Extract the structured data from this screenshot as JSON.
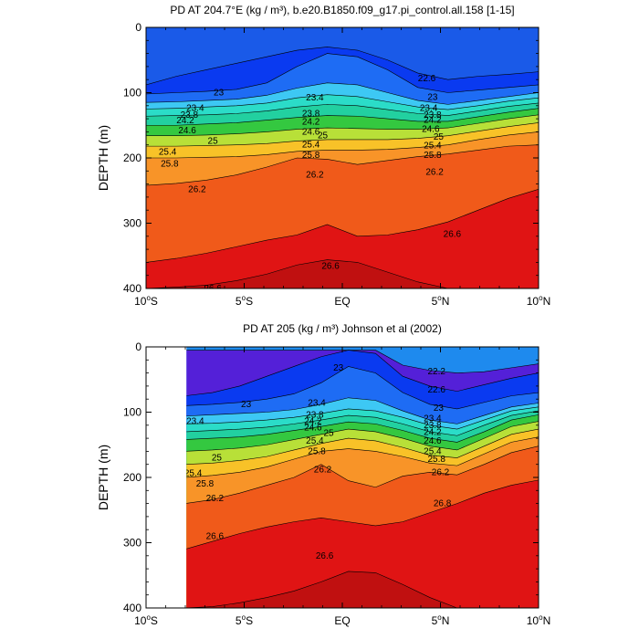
{
  "chart_data": [
    {
      "type": "contour",
      "title": "PD AT 204.7°E (kg / m³), b.e20.B1850.f09_g17.pi_control.all.158 [1-15]",
      "ylabel": "DEPTH (m)",
      "xlim": [
        -10,
        10
      ],
      "ylim": [
        0,
        400
      ],
      "y_inverted": true,
      "xticks": [
        {
          "value": -10,
          "label": "10°S"
        },
        {
          "value": -5,
          "label": "5°S"
        },
        {
          "value": 0,
          "label": "EQ"
        },
        {
          "value": 5,
          "label": "5°N"
        },
        {
          "value": 10,
          "label": "10°N"
        }
      ],
      "yticks": [
        0,
        100,
        200,
        300,
        400
      ],
      "contour_lines": [
        {
          "level": "22.6",
          "depth": [
            88,
            75,
            65,
            55,
            45,
            35,
            30,
            35,
            50,
            70,
            80,
            75,
            72,
            68
          ]
        },
        {
          "level": "23",
          "depth": [
            102,
            100,
            98,
            95,
            85,
            60,
            40,
            45,
            65,
            92,
            100,
            96,
            92,
            88
          ]
        },
        {
          "level": "23.4",
          "depth": [
            115,
            114,
            112,
            110,
            104,
            93,
            85,
            88,
            100,
            112,
            118,
            112,
            106,
            100
          ]
        },
        {
          "level": "23.8",
          "depth": [
            125,
            124,
            122,
            120,
            116,
            108,
            103,
            106,
            114,
            122,
            126,
            120,
            113,
            108
          ]
        },
        {
          "level": "24.2",
          "depth": [
            136,
            135,
            134,
            132,
            128,
            122,
            118,
            120,
            126,
            132,
            135,
            128,
            121,
            116
          ]
        },
        {
          "level": "24.6",
          "depth": [
            150,
            150,
            148,
            146,
            142,
            138,
            135,
            136,
            140,
            144,
            144,
            137,
            130,
            124
          ]
        },
        {
          "level": "25",
          "depth": [
            166,
            166,
            165,
            163,
            160,
            156,
            154,
            155,
            156,
            156,
            154,
            147,
            140,
            134
          ]
        },
        {
          "level": "25.4",
          "depth": [
            182,
            182,
            181,
            180,
            178,
            174,
            172,
            172,
            172,
            170,
            166,
            159,
            152,
            146
          ]
        },
        {
          "level": "25.8",
          "depth": [
            200,
            200,
            199,
            198,
            195,
            190,
            188,
            188,
            187,
            184,
            180,
            172,
            165,
            160
          ]
        },
        {
          "level": "26.2",
          "depth": [
            242,
            239,
            234,
            226,
            214,
            200,
            202,
            210,
            204,
            198,
            194,
            188,
            182,
            180
          ]
        },
        {
          "level": "26.6",
          "depth": [
            360,
            354,
            346,
            336,
            326,
            318,
            302,
            320,
            318,
            310,
            298,
            280,
            262,
            248
          ]
        },
        {
          "level": "26.6",
          "depth": [
            400,
            398,
            395,
            388,
            378,
            364,
            356,
            360,
            375,
            390,
            400,
            400,
            400,
            400
          ]
        }
      ],
      "contour_labels": [
        {
          "text": "22.6",
          "x": 4.3,
          "depth": 78
        },
        {
          "text": "23",
          "x": -6.3,
          "depth": 100
        },
        {
          "text": "23.4",
          "x": -1.4,
          "depth": 108
        },
        {
          "text": "23",
          "x": 4.6,
          "depth": 107
        },
        {
          "text": "23.4",
          "x": -7.5,
          "depth": 124
        },
        {
          "text": "23.8",
          "x": -7.8,
          "depth": 134
        },
        {
          "text": "24.2",
          "x": -8.0,
          "depth": 143
        },
        {
          "text": "24.6",
          "x": -7.9,
          "depth": 158
        },
        {
          "text": "25",
          "x": -6.6,
          "depth": 174
        },
        {
          "text": "25.4",
          "x": -8.9,
          "depth": 191
        },
        {
          "text": "25.8",
          "x": -8.8,
          "depth": 209
        },
        {
          "text": "26.2",
          "x": -7.4,
          "depth": 248
        },
        {
          "text": "23.8",
          "x": -1.6,
          "depth": 132
        },
        {
          "text": "24.2",
          "x": -1.6,
          "depth": 145
        },
        {
          "text": "24.6",
          "x": -1.6,
          "depth": 160
        },
        {
          "text": "25",
          "x": -1.0,
          "depth": 166
        },
        {
          "text": "25.4",
          "x": -1.6,
          "depth": 180
        },
        {
          "text": "25.8",
          "x": -1.6,
          "depth": 196
        },
        {
          "text": "26.2",
          "x": -1.4,
          "depth": 226
        },
        {
          "text": "23.4",
          "x": 4.4,
          "depth": 124
        },
        {
          "text": "23.8",
          "x": 4.6,
          "depth": 134
        },
        {
          "text": "24.2",
          "x": 4.6,
          "depth": 142
        },
        {
          "text": "24.6",
          "x": 4.5,
          "depth": 156
        },
        {
          "text": "25",
          "x": 4.9,
          "depth": 168
        },
        {
          "text": "25.4",
          "x": 4.6,
          "depth": 181
        },
        {
          "text": "25.8",
          "x": 4.6,
          "depth": 196
        },
        {
          "text": "26.2",
          "x": 4.7,
          "depth": 222
        },
        {
          "text": "26.6",
          "x": 5.6,
          "depth": 317
        },
        {
          "text": "26.6",
          "x": -0.6,
          "depth": 366
        },
        {
          "text": "26.6",
          "x": -6.6,
          "depth": 400
        }
      ]
    },
    {
      "type": "contour",
      "title": "PD AT 205 (kg / m³) Johnson et al (2002)",
      "ylabel": "DEPTH (m)",
      "xlim": [
        -10,
        10
      ],
      "ylim": [
        0,
        400
      ],
      "y_inverted": true,
      "data_xlim": [
        -8,
        10
      ],
      "xticks": [
        {
          "value": -10,
          "label": "10°S"
        },
        {
          "value": -5,
          "label": "5°S"
        },
        {
          "value": 0,
          "label": "EQ"
        },
        {
          "value": 5,
          "label": "5°N"
        },
        {
          "value": 10,
          "label": "10°N"
        }
      ],
      "yticks": [
        0,
        100,
        200,
        300,
        400
      ],
      "contour_lines": [
        {
          "level": "22.2",
          "depth": [
            5,
            5,
            5,
            5,
            5,
            5,
            5,
            5,
            28,
            36,
            40,
            38,
            32,
            26
          ]
        },
        {
          "level": "22.6",
          "depth": [
            75,
            70,
            60,
            45,
            30,
            15,
            5,
            10,
            45,
            60,
            68,
            58,
            48,
            40
          ]
        },
        {
          "level": "23",
          "depth": [
            90,
            88,
            85,
            80,
            72,
            55,
            30,
            40,
            70,
            88,
            95,
            85,
            75,
            70
          ]
        },
        {
          "level": "23.4",
          "depth": [
            106,
            104,
            102,
            100,
            96,
            88,
            78,
            82,
            98,
            112,
            118,
            105,
            92,
            86
          ]
        },
        {
          "level": "23.8",
          "depth": [
            118,
            117,
            115,
            112,
            108,
            102,
            95,
            98,
            108,
            120,
            126,
            112,
            98,
            92
          ]
        },
        {
          "level": "24.2",
          "depth": [
            130,
            128,
            126,
            123,
            118,
            112,
            105,
            108,
            118,
            130,
            136,
            120,
            105,
            98
          ]
        },
        {
          "level": "24.6",
          "depth": [
            142,
            140,
            138,
            134,
            128,
            122,
            115,
            118,
            128,
            140,
            146,
            130,
            112,
            104
          ]
        },
        {
          "level": "25",
          "depth": [
            160,
            158,
            155,
            150,
            142,
            134,
            126,
            130,
            140,
            152,
            158,
            140,
            122,
            114
          ]
        },
        {
          "level": "25.4",
          "depth": [
            180,
            178,
            174,
            168,
            158,
            148,
            140,
            144,
            154,
            166,
            170,
            152,
            134,
            126
          ]
        },
        {
          "level": "25.8",
          "depth": [
            200,
            197,
            192,
            184,
            172,
            160,
            156,
            160,
            168,
            178,
            182,
            164,
            146,
            138
          ]
        },
        {
          "level": "26.2",
          "depth": [
            240,
            234,
            224,
            212,
            200,
            180,
            205,
            215,
            198,
            192,
            196,
            180,
            162,
            152
          ]
        },
        {
          "level": "26.6",
          "depth": [
            310,
            298,
            286,
            276,
            268,
            262,
            268,
            274,
            268,
            254,
            240,
            224,
            212,
            204
          ]
        },
        {
          "level": "26.6",
          "depth": [
            400,
            398,
            392,
            384,
            374,
            360,
            344,
            346,
            364,
            384,
            400,
            400,
            400,
            400
          ]
        }
      ],
      "contour_labels": [
        {
          "text": "22.2",
          "x": 4.8,
          "depth": 38
        },
        {
          "text": "23",
          "x": -0.2,
          "depth": 32
        },
        {
          "text": "22.6",
          "x": 4.8,
          "depth": 66
        },
        {
          "text": "23",
          "x": -4.9,
          "depth": 88
        },
        {
          "text": "23.4",
          "x": -1.3,
          "depth": 86
        },
        {
          "text": "23",
          "x": 4.9,
          "depth": 94
        },
        {
          "text": "23.4",
          "x": -7.5,
          "depth": 114
        },
        {
          "text": "23.8",
          "x": -1.4,
          "depth": 104
        },
        {
          "text": "24.2",
          "x": -1.5,
          "depth": 114
        },
        {
          "text": "24.6",
          "x": -1.5,
          "depth": 124
        },
        {
          "text": "25",
          "x": -0.7,
          "depth": 132
        },
        {
          "text": "25.4",
          "x": -1.4,
          "depth": 144
        },
        {
          "text": "25.8",
          "x": -1.3,
          "depth": 160
        },
        {
          "text": "25",
          "x": -6.4,
          "depth": 170
        },
        {
          "text": "25.4",
          "x": -7.6,
          "depth": 194
        },
        {
          "text": "25.8",
          "x": -7.0,
          "depth": 210
        },
        {
          "text": "26.2",
          "x": -6.5,
          "depth": 232
        },
        {
          "text": "23.4",
          "x": 4.6,
          "depth": 110
        },
        {
          "text": "23.8",
          "x": 4.6,
          "depth": 120
        },
        {
          "text": "24.2",
          "x": 4.6,
          "depth": 131
        },
        {
          "text": "24.6",
          "x": 4.6,
          "depth": 144
        },
        {
          "text": "25.4",
          "x": 4.6,
          "depth": 160
        },
        {
          "text": "25.8",
          "x": 4.8,
          "depth": 172
        },
        {
          "text": "26.2",
          "x": 5.0,
          "depth": 192
        },
        {
          "text": "26.2",
          "x": -1.0,
          "depth": 188
        },
        {
          "text": "26.8",
          "x": 5.1,
          "depth": 240
        },
        {
          "text": "26.6",
          "x": -6.5,
          "depth": 290
        },
        {
          "text": "26.6",
          "x": -0.9,
          "depth": 320
        }
      ]
    }
  ]
}
